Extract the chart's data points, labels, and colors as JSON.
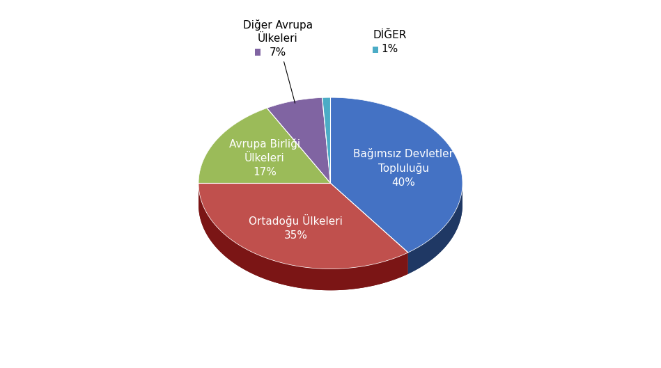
{
  "slices": [
    {
      "label": "Bağımsız Devletler\nTopluluğu\n40%",
      "value": 40,
      "color": "#4472C4",
      "dark_color": "#1F3864",
      "text_color": "white"
    },
    {
      "label": "Ortadoğu Ülkeleri\n35%",
      "value": 35,
      "color": "#C0504D",
      "dark_color": "#7B1515",
      "text_color": "white"
    },
    {
      "label": "Avrupa Birliği\nÜlkeleri\n17%",
      "value": 17,
      "color": "#9BBB59",
      "dark_color": "#4F6228",
      "text_color": "white"
    },
    {
      "label": "Diğer Avrupa\nÜlkeleri\n7%",
      "value": 7,
      "color": "#8064A2",
      "dark_color": "#3D2B62",
      "text_color": "black",
      "outside": true
    },
    {
      "label": "DİĞER\n1%",
      "value": 1,
      "color": "#4BACC6",
      "dark_color": "#17375E",
      "text_color": "black",
      "outside": true
    }
  ],
  "background_color": "#FFFFFF",
  "font_size": 11,
  "depth": 0.25,
  "startangle": 90
}
